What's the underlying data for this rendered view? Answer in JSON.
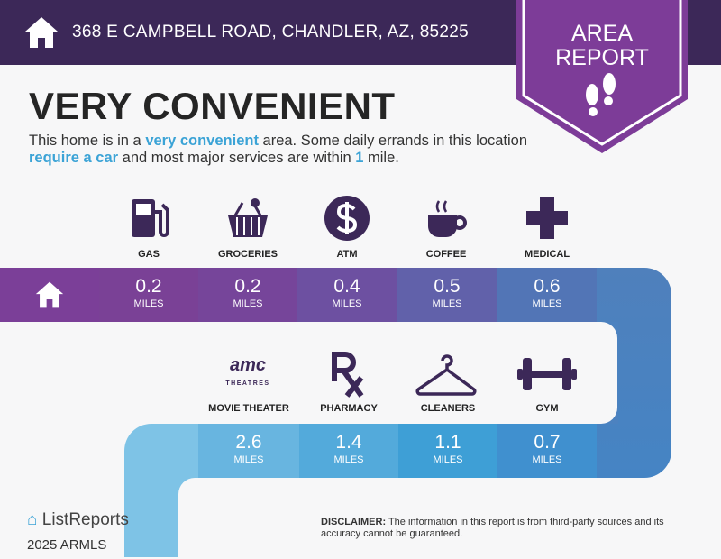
{
  "header": {
    "address": "368 E CAMPBELL ROAD, CHANDLER, AZ, 85225",
    "badge_line1": "AREA",
    "badge_line2": "REPORT",
    "home_icon": "house-icon",
    "badge_icon": "footprints-icon"
  },
  "headline": "VERY CONVENIENT",
  "description": {
    "p1": "This home is in a ",
    "h1": "very convenient",
    "p2": " area. Some daily errands in this location ",
    "h2": "require a car",
    "p3": " and most major services are within ",
    "h3": "1",
    "p4": " mile."
  },
  "row1": [
    {
      "label": "GAS",
      "value": "0.2",
      "unit": "MILES",
      "icon": "gas-pump-icon"
    },
    {
      "label": "GROCERIES",
      "value": "0.2",
      "unit": "MILES",
      "icon": "grocery-basket-icon"
    },
    {
      "label": "ATM",
      "value": "0.4",
      "unit": "MILES",
      "icon": "dollar-icon"
    },
    {
      "label": "COFFEE",
      "value": "0.5",
      "unit": "MILES",
      "icon": "coffee-cup-icon"
    },
    {
      "label": "MEDICAL",
      "value": "0.6",
      "unit": "MILES",
      "icon": "medical-cross-icon"
    }
  ],
  "row2": [
    {
      "label": "MOVIE THEATER",
      "value": "2.6",
      "unit": "MILES",
      "icon": "amc-theatres-icon",
      "logo_text": "amc",
      "logo_sub": "THEATRES"
    },
    {
      "label": "PHARMACY",
      "value": "1.4",
      "unit": "MILES",
      "icon": "rx-icon"
    },
    {
      "label": "CLEANERS",
      "value": "1.1",
      "unit": "MILES",
      "icon": "hanger-icon"
    },
    {
      "label": "GYM",
      "value": "0.7",
      "unit": "MILES",
      "icon": "dumbbell-icon"
    }
  ],
  "footer": {
    "logo": "ListReports",
    "watermark": "2025 ARMLS",
    "disclaimer_label": "DISCLAIMER:",
    "disclaimer_text": " The information in this report is from third-party sources and its accuracy cannot be guaranteed."
  },
  "colors": {
    "header": "#3c2858",
    "badge": "#7d3c98",
    "accent": "#3ba3d6",
    "icon": "#3c2858"
  }
}
